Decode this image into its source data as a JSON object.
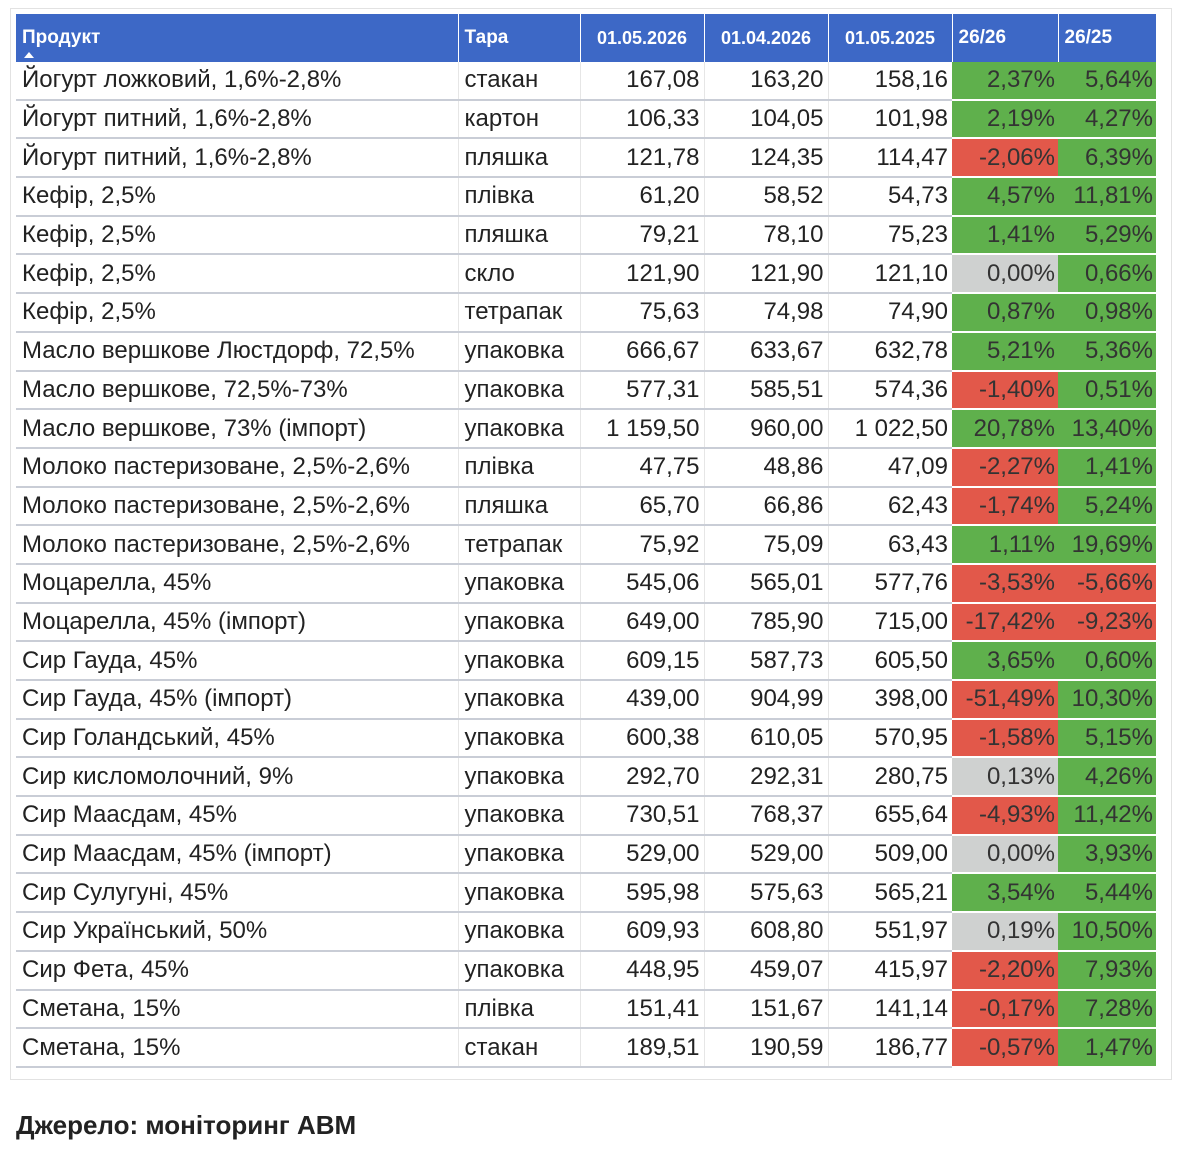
{
  "columns": {
    "product": "Продукт",
    "tara": "Тара",
    "d1": "01.05.2026",
    "d2": "01.04.2026",
    "d3": "01.05.2025",
    "p1": "26/26",
    "p2": "26/25"
  },
  "colors": {
    "header": "#3d68c6",
    "positive": "#5fb04c",
    "negative": "#e2584a",
    "neutral": "#cfd1d0"
  },
  "rows": [
    {
      "product": "Йогурт ложковий, 1,6%-2,8%",
      "tara": "стакан",
      "d1": "167,08",
      "d2": "163,20",
      "d3": "158,16",
      "p1": "2,37%",
      "p1s": "pos",
      "p2": "5,64%",
      "p2s": "pos"
    },
    {
      "product": "Йогурт питний, 1,6%-2,8%",
      "tara": "картон",
      "d1": "106,33",
      "d2": "104,05",
      "d3": "101,98",
      "p1": "2,19%",
      "p1s": "pos",
      "p2": "4,27%",
      "p2s": "pos"
    },
    {
      "product": "Йогурт питний, 1,6%-2,8%",
      "tara": "пляшка",
      "d1": "121,78",
      "d2": "124,35",
      "d3": "114,47",
      "p1": "-2,06%",
      "p1s": "neg",
      "p2": "6,39%",
      "p2s": "pos"
    },
    {
      "product": "Кефір, 2,5%",
      "tara": "плівка",
      "d1": "61,20",
      "d2": "58,52",
      "d3": "54,73",
      "p1": "4,57%",
      "p1s": "pos",
      "p2": "11,81%",
      "p2s": "pos"
    },
    {
      "product": "Кефір, 2,5%",
      "tara": "пляшка",
      "d1": "79,21",
      "d2": "78,10",
      "d3": "75,23",
      "p1": "1,41%",
      "p1s": "pos",
      "p2": "5,29%",
      "p2s": "pos"
    },
    {
      "product": "Кефір, 2,5%",
      "tara": "скло",
      "d1": "121,90",
      "d2": "121,90",
      "d3": "121,10",
      "p1": "0,00%",
      "p1s": "zero",
      "p2": "0,66%",
      "p2s": "pos"
    },
    {
      "product": "Кефір, 2,5%",
      "tara": "тетрапак",
      "d1": "75,63",
      "d2": "74,98",
      "d3": "74,90",
      "p1": "0,87%",
      "p1s": "pos",
      "p2": "0,98%",
      "p2s": "pos"
    },
    {
      "product": "Масло вершкове Люстдорф, 72,5%",
      "tara": "упаковка",
      "d1": "666,67",
      "d2": "633,67",
      "d3": "632,78",
      "p1": "5,21%",
      "p1s": "pos",
      "p2": "5,36%",
      "p2s": "pos"
    },
    {
      "product": "Масло вершкове, 72,5%-73%",
      "tara": "упаковка",
      "d1": "577,31",
      "d2": "585,51",
      "d3": "574,36",
      "p1": "-1,40%",
      "p1s": "neg",
      "p2": "0,51%",
      "p2s": "pos"
    },
    {
      "product": "Масло вершкове, 73% (імпорт)",
      "tara": "упаковка",
      "d1": "1 159,50",
      "d2": "960,00",
      "d3": "1 022,50",
      "p1": "20,78%",
      "p1s": "pos",
      "p2": "13,40%",
      "p2s": "pos"
    },
    {
      "product": "Молоко пастеризоване, 2,5%-2,6%",
      "tara": "плівка",
      "d1": "47,75",
      "d2": "48,86",
      "d3": "47,09",
      "p1": "-2,27%",
      "p1s": "neg",
      "p2": "1,41%",
      "p2s": "pos"
    },
    {
      "product": "Молоко пастеризоване, 2,5%-2,6%",
      "tara": "пляшка",
      "d1": "65,70",
      "d2": "66,86",
      "d3": "62,43",
      "p1": "-1,74%",
      "p1s": "neg",
      "p2": "5,24%",
      "p2s": "pos"
    },
    {
      "product": "Молоко пастеризоване, 2,5%-2,6%",
      "tara": "тетрапак",
      "d1": "75,92",
      "d2": "75,09",
      "d3": "63,43",
      "p1": "1,11%",
      "p1s": "pos",
      "p2": "19,69%",
      "p2s": "pos"
    },
    {
      "product": "Моцарелла, 45%",
      "tara": "упаковка",
      "d1": "545,06",
      "d2": "565,01",
      "d3": "577,76",
      "p1": "-3,53%",
      "p1s": "neg",
      "p2": "-5,66%",
      "p2s": "neg"
    },
    {
      "product": "Моцарелла, 45% (імпорт)",
      "tara": "упаковка",
      "d1": "649,00",
      "d2": "785,90",
      "d3": "715,00",
      "p1": "-17,42%",
      "p1s": "neg",
      "p2": "-9,23%",
      "p2s": "neg"
    },
    {
      "product": "Сир Гауда, 45%",
      "tara": "упаковка",
      "d1": "609,15",
      "d2": "587,73",
      "d3": "605,50",
      "p1": "3,65%",
      "p1s": "pos",
      "p2": "0,60%",
      "p2s": "pos"
    },
    {
      "product": "Сир Гауда, 45% (імпорт)",
      "tara": "упаковка",
      "d1": "439,00",
      "d2": "904,99",
      "d3": "398,00",
      "p1": "-51,49%",
      "p1s": "neg",
      "p2": "10,30%",
      "p2s": "pos"
    },
    {
      "product": "Сир Голандський, 45%",
      "tara": "упаковка",
      "d1": "600,38",
      "d2": "610,05",
      "d3": "570,95",
      "p1": "-1,58%",
      "p1s": "neg",
      "p2": "5,15%",
      "p2s": "pos"
    },
    {
      "product": "Сир кисломолочний, 9%",
      "tara": "упаковка",
      "d1": "292,70",
      "d2": "292,31",
      "d3": "280,75",
      "p1": "0,13%",
      "p1s": "zero",
      "p2": "4,26%",
      "p2s": "pos"
    },
    {
      "product": "Сир Маасдам, 45%",
      "tara": "упаковка",
      "d1": "730,51",
      "d2": "768,37",
      "d3": "655,64",
      "p1": "-4,93%",
      "p1s": "neg",
      "p2": "11,42%",
      "p2s": "pos"
    },
    {
      "product": "Сир Маасдам, 45% (імпорт)",
      "tara": "упаковка",
      "d1": "529,00",
      "d2": "529,00",
      "d3": "509,00",
      "p1": "0,00%",
      "p1s": "zero",
      "p2": "3,93%",
      "p2s": "pos"
    },
    {
      "product": "Сир Сулугуні, 45%",
      "tara": "упаковка",
      "d1": "595,98",
      "d2": "575,63",
      "d3": "565,21",
      "p1": "3,54%",
      "p1s": "pos",
      "p2": "5,44%",
      "p2s": "pos"
    },
    {
      "product": "Сир Український, 50%",
      "tara": "упаковка",
      "d1": "609,93",
      "d2": "608,80",
      "d3": "551,97",
      "p1": "0,19%",
      "p1s": "zero",
      "p2": "10,50%",
      "p2s": "pos"
    },
    {
      "product": "Сир Фета, 45%",
      "tara": "упаковка",
      "d1": "448,95",
      "d2": "459,07",
      "d3": "415,97",
      "p1": "-2,20%",
      "p1s": "neg",
      "p2": "7,93%",
      "p2s": "pos"
    },
    {
      "product": "Сметана, 15%",
      "tara": "плівка",
      "d1": "151,41",
      "d2": "151,67",
      "d3": "141,14",
      "p1": "-0,17%",
      "p1s": "neg",
      "p2": "7,28%",
      "p2s": "pos"
    },
    {
      "product": "Сметана, 15%",
      "tara": "стакан",
      "d1": "189,51",
      "d2": "190,59",
      "d3": "186,77",
      "p1": "-0,57%",
      "p1s": "neg",
      "p2": "1,47%",
      "p2s": "pos"
    }
  ],
  "source": "Джерело: моніторинг АВМ"
}
